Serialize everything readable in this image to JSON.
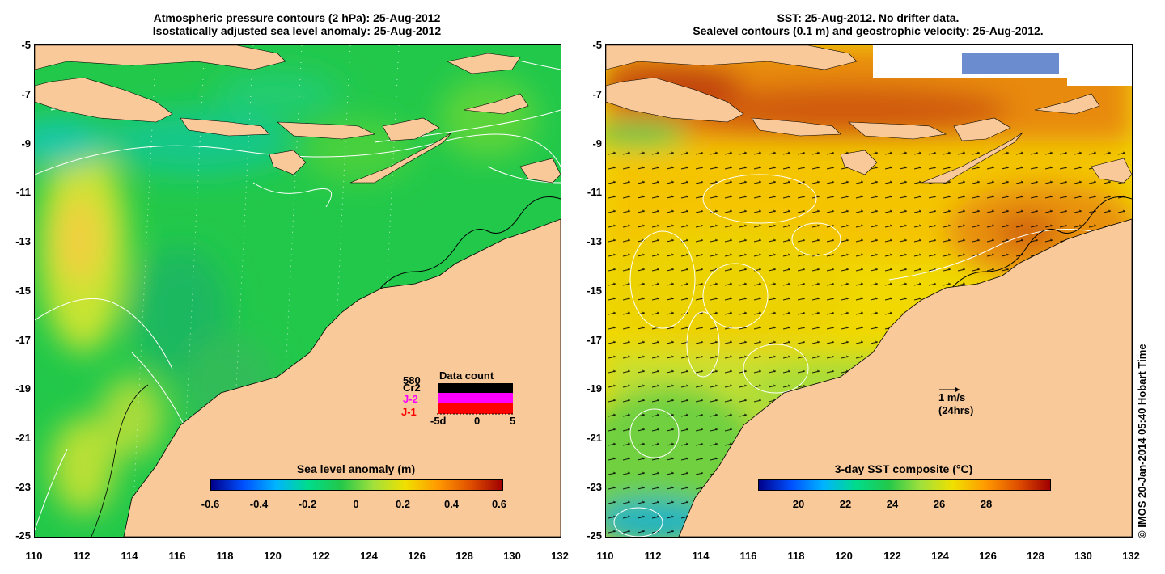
{
  "left_panel": {
    "title_line1": "Atmospheric pressure contours (2 hPa): 25-Aug-2012",
    "title_line2": "Isostatically adjusted sea level anomaly: 25-Aug-2012",
    "colorbar_title": "Sea level anomaly (m)",
    "colorbar_ticks": [
      "-0.6",
      "-0.4",
      "-0.2",
      "0",
      "0.2",
      "0.4",
      "0.6"
    ],
    "data_count": {
      "title": "Data count",
      "max_label": "580",
      "satellites": [
        {
          "name": "Cr2",
          "color": "#000000"
        },
        {
          "name": "J-2",
          "color": "#ff00ff"
        },
        {
          "name": "J-1",
          "color": "#ff0000"
        }
      ],
      "x_ticks": [
        "-5d",
        "0",
        "5"
      ]
    }
  },
  "right_panel": {
    "title_line1": "SST: 25-Aug-2012. No drifter data.",
    "title_line2": "Sealevel contours (0.1 m) and geostrophic velocity: 25-Aug-2012.",
    "colorbar_title": "3-day SST composite (°C)",
    "colorbar_ticks": [
      "20",
      "22",
      "24",
      "26",
      "28"
    ],
    "velocity_scale": {
      "speed": "1 m/s",
      "duration": "(24hrs)"
    }
  },
  "axes": {
    "lat_ticks": [
      "-5",
      "-7",
      "-9",
      "-11",
      "-13",
      "-15",
      "-17",
      "-19",
      "-21",
      "-23",
      "-25"
    ],
    "lon_ticks": [
      "110",
      "112",
      "114",
      "116",
      "118",
      "120",
      "122",
      "124",
      "126",
      "128",
      "130",
      "132"
    ]
  },
  "credit": "© IMOS 20-Jan-2014 05:40 Hobart Time",
  "colors": {
    "land": "#f9c99a",
    "ocean_left": "#22c84a",
    "ocean_right": "#f0d800",
    "warm_north": "#e07a10"
  }
}
